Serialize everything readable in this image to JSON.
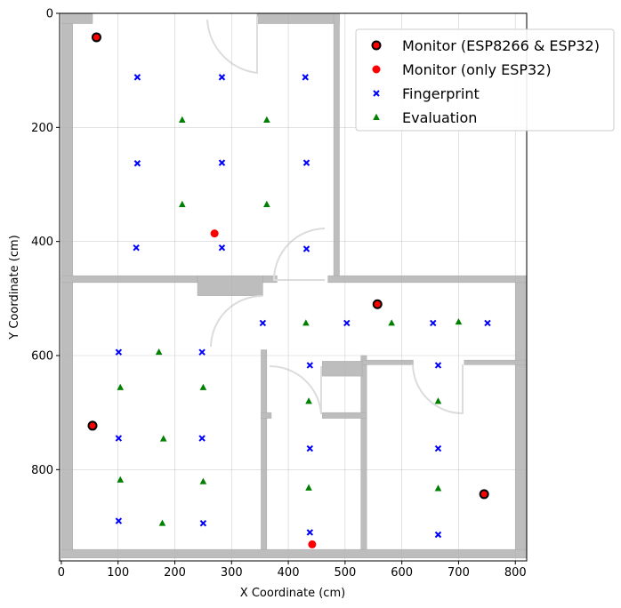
{
  "chart_data": {
    "type": "scatter",
    "title": "",
    "xlabel": "X Coordinate (cm)",
    "ylabel": "Y Coordinate (cm)",
    "xlim": [
      -3,
      820
    ],
    "ylim": [
      960,
      0
    ],
    "y_inverted": true,
    "grid": true,
    "legend_position": "top-right",
    "xticks": [
      0,
      100,
      200,
      300,
      400,
      500,
      600,
      700,
      800
    ],
    "yticks": [
      0,
      200,
      400,
      600,
      800
    ],
    "series": [
      {
        "name": "Monitor (ESP8266 & ESP32)",
        "marker": "circle-outlined",
        "color": "#ff0000",
        "edge_color": "#000000",
        "points": [
          [
            62,
            42
          ],
          [
            55,
            723
          ],
          [
            557,
            510
          ],
          [
            745,
            843
          ]
        ]
      },
      {
        "name": "Monitor (only ESP32)",
        "marker": "circle",
        "color": "#ff0000",
        "points": [
          [
            270,
            386
          ],
          [
            442,
            931
          ]
        ]
      },
      {
        "name": "Fingerprint",
        "marker": "x",
        "color": "#0000ff",
        "points": [
          [
            134,
            112
          ],
          [
            283,
            112
          ],
          [
            430,
            112
          ],
          [
            134,
            263
          ],
          [
            283,
            262
          ],
          [
            432,
            262
          ],
          [
            132,
            411
          ],
          [
            283,
            411
          ],
          [
            432,
            413
          ],
          [
            355,
            543
          ],
          [
            503,
            543
          ],
          [
            655,
            543
          ],
          [
            751,
            543
          ],
          [
            101,
            594
          ],
          [
            248,
            594
          ],
          [
            438,
            617
          ],
          [
            664,
            617
          ],
          [
            101,
            745
          ],
          [
            248,
            745
          ],
          [
            438,
            763
          ],
          [
            664,
            763
          ],
          [
            101,
            890
          ],
          [
            250,
            894
          ],
          [
            438,
            910
          ],
          [
            664,
            914
          ]
        ]
      },
      {
        "name": "Evaluation",
        "marker": "triangle",
        "color": "#008000",
        "points": [
          [
            213,
            187
          ],
          [
            362,
            187
          ],
          [
            213,
            335
          ],
          [
            362,
            335
          ],
          [
            431,
            543
          ],
          [
            582,
            543
          ],
          [
            700,
            541
          ],
          [
            172,
            594
          ],
          [
            104,
            656
          ],
          [
            250,
            656
          ],
          [
            436,
            680
          ],
          [
            664,
            680
          ],
          [
            180,
            746
          ],
          [
            104,
            818
          ],
          [
            250,
            821
          ],
          [
            436,
            832
          ],
          [
            664,
            833
          ],
          [
            178,
            894
          ]
        ]
      }
    ]
  }
}
